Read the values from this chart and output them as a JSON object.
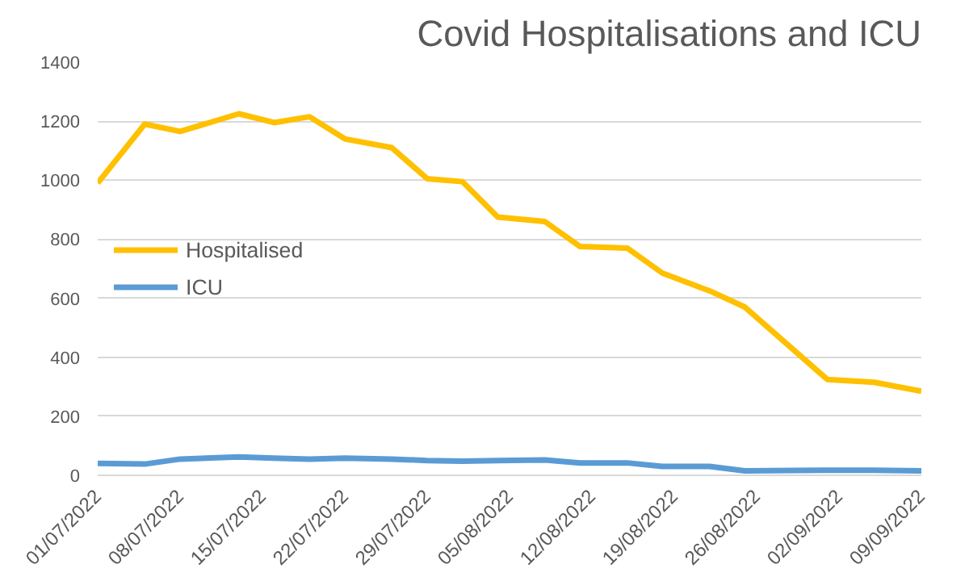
{
  "chart_data": {
    "type": "line",
    "title": "Covid Hospitalisations and ICU",
    "x": [
      "2022-07-01",
      "2022-07-05",
      "2022-07-08",
      "2022-07-13",
      "2022-07-16",
      "2022-07-19",
      "2022-07-22",
      "2022-07-26",
      "2022-07-29",
      "2022-08-01",
      "2022-08-04",
      "2022-08-08",
      "2022-08-11",
      "2022-08-15",
      "2022-08-18",
      "2022-08-22",
      "2022-08-25",
      "2022-09-01",
      "2022-09-05",
      "2022-09-09"
    ],
    "series": [
      {
        "name": "Hospitalised",
        "color": "#ffc000",
        "values": [
          990,
          1190,
          1165,
          1225,
          1195,
          1215,
          1140,
          1110,
          1005,
          995,
          875,
          860,
          775,
          770,
          685,
          625,
          570,
          325,
          315,
          285
        ]
      },
      {
        "name": "ICU",
        "color": "#5b9bd5",
        "values": [
          40,
          38,
          55,
          62,
          58,
          55,
          58,
          55,
          50,
          48,
          50,
          52,
          42,
          42,
          30,
          30,
          15,
          17,
          17,
          15
        ]
      }
    ],
    "xlim": [
      "2022-07-01",
      "2022-09-09"
    ],
    "xticks": [
      {
        "value": "2022-07-01",
        "label": "01/07/2022"
      },
      {
        "value": "2022-07-08",
        "label": "08/07/2022"
      },
      {
        "value": "2022-07-15",
        "label": "15/07/2022"
      },
      {
        "value": "2022-07-22",
        "label": "22/07/2022"
      },
      {
        "value": "2022-07-29",
        "label": "29/07/2022"
      },
      {
        "value": "2022-08-05",
        "label": "05/08/2022"
      },
      {
        "value": "2022-08-12",
        "label": "12/08/2022"
      },
      {
        "value": "2022-08-19",
        "label": "19/08/2022"
      },
      {
        "value": "2022-08-26",
        "label": "26/08/2022"
      },
      {
        "value": "2022-09-02",
        "label": "02/09/2022"
      },
      {
        "value": "2022-09-09",
        "label": "09/09/2022"
      }
    ],
    "ylim": [
      0,
      1400
    ],
    "yticks": [
      0,
      200,
      400,
      600,
      800,
      1000,
      1200,
      1400
    ],
    "grid": "y",
    "legend": "left",
    "marker": "none",
    "line_style": "solid"
  }
}
